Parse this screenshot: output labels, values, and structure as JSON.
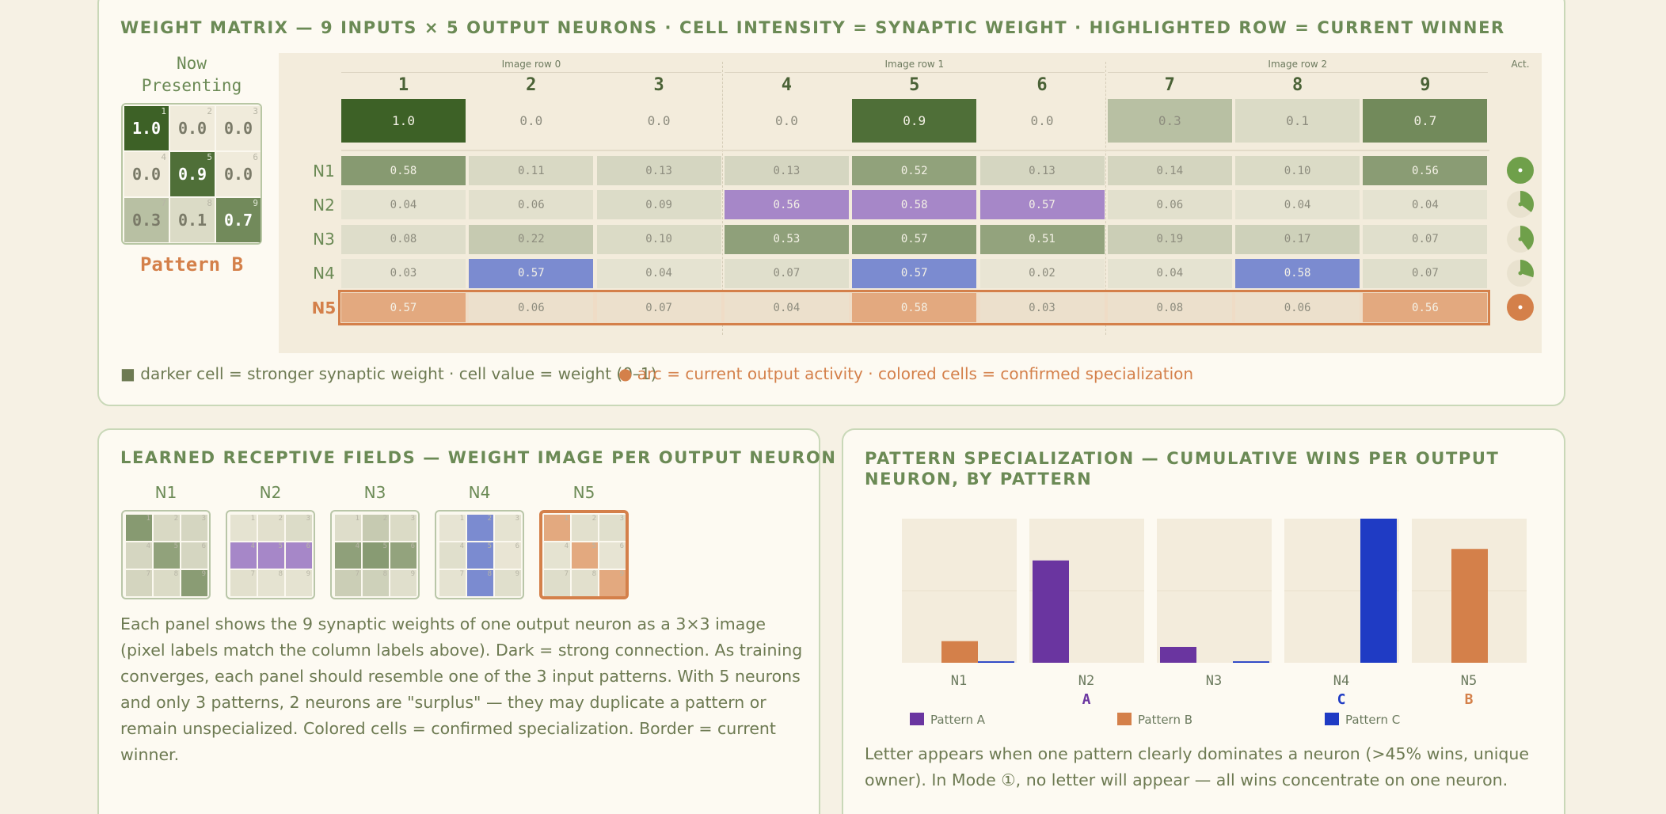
{
  "weight_matrix": {
    "title": "WEIGHT MATRIX — 9 INPUTS × 5 OUTPUT NEURONS · CELL INTENSITY = SYNAPTIC WEIGHT · HIGHLIGHTED ROW = CURRENT WINNER",
    "now_presenting": {
      "label": "Now Presenting",
      "pattern": "Pattern B"
    },
    "column_groups": [
      "Image row 0",
      "Image row 1",
      "Image row 2"
    ],
    "activity_header": "Act.",
    "columns": [
      "1",
      "2",
      "3",
      "4",
      "5",
      "6",
      "7",
      "8",
      "9"
    ],
    "input": [
      "1.0",
      "0.0",
      "0.0",
      "0.0",
      "0.9",
      "0.0",
      "0.3",
      "0.1",
      "0.7"
    ],
    "rows": [
      {
        "label": "N1",
        "weights": [
          "0.58",
          "0.11",
          "0.13",
          "0.13",
          "0.52",
          "0.13",
          "0.14",
          "0.10",
          "0.56"
        ],
        "activity": 1,
        "color": null,
        "winner": false
      },
      {
        "label": "N2",
        "weights": [
          "0.04",
          "0.06",
          "0.09",
          "0.56",
          "0.58",
          "0.57",
          "0.06",
          "0.04",
          "0.04"
        ],
        "activity": 0.35,
        "color": "#a687c8",
        "winner": false
      },
      {
        "label": "N3",
        "weights": [
          "0.08",
          "0.22",
          "0.10",
          "0.53",
          "0.57",
          "0.51",
          "0.19",
          "0.17",
          "0.07"
        ],
        "activity": 0.4,
        "color": null,
        "winner": false
      },
      {
        "label": "N4",
        "weights": [
          "0.03",
          "0.57",
          "0.04",
          "0.07",
          "0.57",
          "0.02",
          "0.04",
          "0.58",
          "0.07"
        ],
        "activity": 0.3,
        "color": "#7b8bd0",
        "winner": false
      },
      {
        "label": "N5",
        "weights": [
          "0.57",
          "0.06",
          "0.07",
          "0.04",
          "0.58",
          "0.03",
          "0.08",
          "0.06",
          "0.56"
        ],
        "activity": 1,
        "color": "#e3a97f",
        "winner": true
      }
    ],
    "legend": [
      "■ darker cell = stronger synaptic weight · cell value = weight (0–1)",
      "● arc = current output activity · colored cells = confirmed specialization"
    ]
  },
  "receptive_fields": {
    "title": "LEARNED RECEPTIVE FIELDS — WEIGHT IMAGE PER OUTPUT NEURON",
    "text": "Each panel shows the 9 synaptic weights of one output neuron as a 3×3 image (pixel labels match the column labels above). Dark = strong connection. As training converges, each panel should resemble one of the 3 input patterns. With 5 neurons and only 3 patterns, 2 neurons are \"surplus\" — they may duplicate a pattern or remain unspecialized. Colored cells = confirmed specialization. Border = current winner."
  },
  "specialization": {
    "title": "PATTERN SPECIALIZATION — CUMULATIVE WINS PER OUTPUT NEURON, BY PATTERN",
    "caption": "Letter appears when one pattern clearly dominates a neuron (>45% wins, unique owner). In Mode ①, no letter will appear — all wins concentrate on one neuron."
  },
  "chart_data": {
    "type": "bar",
    "categories": [
      "N1",
      "N2",
      "N3",
      "N4",
      "N5"
    ],
    "letters": [
      null,
      "A",
      null,
      "C",
      "B"
    ],
    "letter_colors": [
      null,
      "#6a35a0",
      null,
      "#1f3bc4",
      "#d4804a"
    ],
    "series": [
      {
        "name": "Pattern A",
        "color": "#6a35a0",
        "values": [
          0,
          71,
          11,
          0,
          0
        ]
      },
      {
        "name": "Pattern B",
        "color": "#d4804a",
        "values": [
          15,
          0,
          0,
          0,
          79
        ]
      },
      {
        "name": "Pattern C",
        "color": "#1f3bc4",
        "values": [
          1,
          0,
          1,
          100,
          0
        ]
      }
    ],
    "ylim": [
      0,
      100
    ]
  }
}
